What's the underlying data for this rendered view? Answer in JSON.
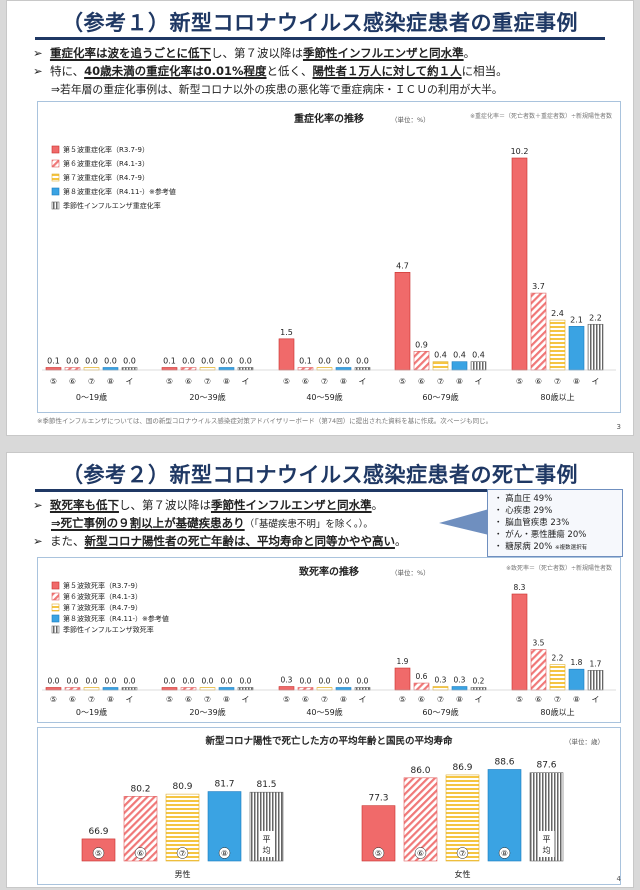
{
  "slide1": {
    "title": "（参考１）新型コロナウイルス感染症患者の重症事例",
    "bullets": [
      {
        "pre": "",
        "bold": "重症化率は波を追うごとに低下",
        "mid": "し、第７波以降は",
        "bold2": "季節性インフルエンザと同水準",
        "post": "。",
        "marker": "➢"
      },
      {
        "pre": "特に、",
        "bold": "40歳未満の重症化率は0.01%程度",
        "mid": "と低く、",
        "bold2": "陽性者１万人に対して約１人",
        "post": "に相当。",
        "marker": "➢"
      },
      {
        "pre": "⇒若年層の重症化事例は、新型コロナ以外の疾患の悪化等で重症病床・ＩＣＵの利用が大半。",
        "bold": "",
        "mid": "",
        "bold2": "",
        "post": "",
        "marker": ""
      }
    ],
    "footnote": "※季節性インフルエンザについては、国の新型コロナウイルス感染症対策アドバイザリーボード（第74回）に提出された資料を基に作成。次ページも同じ。",
    "page": "3"
  },
  "slide2": {
    "title": "（参考２）新型コロナウイルス感染症患者の死亡事例",
    "bullets": [
      {
        "pre": "",
        "bold": "致死率も低下",
        "mid": "し、第７波以降は",
        "bold2": "季節性インフルエンザと同水準",
        "post": "。",
        "marker": "➢"
      },
      {
        "pre": "",
        "bold": "⇒死亡事例の９割以上が基礎疾患あり",
        "mid": "（「基礎疾患不明」を除く。）。",
        "bold2": "",
        "post": "",
        "marker": ""
      },
      {
        "pre": "また、",
        "bold": "新型コロナ陽性者の死亡年齢は、平均寿命と同等かやや高い",
        "mid": "。",
        "bold2": "",
        "post": "",
        "marker": "➢"
      }
    ],
    "sidebox": [
      "・ 高血圧 49%",
      "・ 心疾患 29%",
      "・ 脳血管疾患 23%",
      "・ がん・悪性腫瘍 20%",
      "・ 糖尿病 20%"
    ],
    "sidebox_note": "※複数選択有",
    "page": "4"
  },
  "chart_data": [
    {
      "type": "bar",
      "title": "重症化率の推移",
      "unit": "（単位：%）",
      "formula": "※重症化率＝（死亡者数＋重症者数）÷新規陽性者数",
      "categories": [
        "0〜19歳",
        "20〜39歳",
        "40〜59歳",
        "60〜79歳",
        "80歳以上"
      ],
      "series": [
        {
          "name": "第５波重症化率（R3.7-9）",
          "tick": "⑤",
          "values": [
            0.1,
            0.1,
            1.5,
            4.7,
            10.2
          ]
        },
        {
          "name": "第６波重症化率（R4.1-3）",
          "tick": "⑥",
          "values": [
            0.0,
            0.0,
            0.1,
            0.9,
            3.7
          ]
        },
        {
          "name": "第７波重症化率（R4.7-9）",
          "tick": "⑦",
          "values": [
            0.0,
            0.0,
            0.0,
            0.4,
            2.4
          ]
        },
        {
          "name": "第８波重症化率（R4.11-）※参考値",
          "tick": "⑧",
          "values": [
            0.0,
            0.0,
            0.0,
            0.4,
            2.1
          ]
        },
        {
          "name": "季節性インフルエンザ重症化率",
          "tick": "イ",
          "values": [
            0.0,
            0.0,
            0.0,
            0.4,
            2.2
          ]
        }
      ],
      "labels": [
        [
          "0.1",
          "0.0",
          "0.0",
          "0.0",
          "0.0"
        ],
        [
          "0.1",
          "0.0",
          "0.0",
          "0.0",
          "0.0"
        ],
        [
          "1.5",
          "0.1",
          "0.0",
          "0.0",
          "0.0"
        ],
        [
          "4.7",
          "0.9",
          "0.4",
          "0.4",
          "0.4"
        ],
        [
          "10.2",
          "3.7",
          "2.4",
          "2.1",
          "2.2"
        ]
      ],
      "ylim": [
        0,
        10.2
      ]
    },
    {
      "type": "bar",
      "title": "致死率の推移",
      "unit": "（単位：%）",
      "formula": "※致死率＝（死亡者数）÷新規陽性者数",
      "categories": [
        "0〜19歳",
        "20〜39歳",
        "40〜59歳",
        "60〜79歳",
        "80歳以上"
      ],
      "series": [
        {
          "name": "第５波致死率（R3.7-9）",
          "tick": "⑤",
          "values": [
            0.0,
            0.0,
            0.3,
            1.9,
            8.3
          ]
        },
        {
          "name": "第６波致死率（R4.1-3）",
          "tick": "⑥",
          "values": [
            0.0,
            0.0,
            0.0,
            0.6,
            3.5
          ]
        },
        {
          "name": "第７波致死率（R4.7-9）",
          "tick": "⑦",
          "values": [
            0.0,
            0.0,
            0.0,
            0.3,
            2.2
          ]
        },
        {
          "name": "第８波致死率（R4.11-）※参考値",
          "tick": "⑧",
          "values": [
            0.0,
            0.0,
            0.0,
            0.3,
            1.8
          ]
        },
        {
          "name": "季節性インフルエンザ致死率",
          "tick": "イ",
          "values": [
            0.0,
            0.0,
            0.0,
            0.2,
            1.7
          ]
        }
      ],
      "labels": [
        [
          "0.0",
          "0.0",
          "0.0",
          "0.0",
          "0.0"
        ],
        [
          "0.0",
          "0.0",
          "0.0",
          "0.0",
          "0.0"
        ],
        [
          "0.3",
          "0.0",
          "0.0",
          "0.0",
          "0.0"
        ],
        [
          "1.9",
          "0.6",
          "0.3",
          "0.3",
          "0.2"
        ],
        [
          "8.3",
          "3.5",
          "2.2",
          "1.8",
          "1.7"
        ]
      ],
      "ylim": [
        0,
        8.3
      ]
    },
    {
      "type": "bar",
      "title": "新型コロナ陽性で死亡した方の平均年齢と国民の平均寿命",
      "unit": "（単位：歳）",
      "categories": [
        "男性",
        "女性"
      ],
      "series": [
        {
          "name": "⑤",
          "values": [
            66.9,
            77.3
          ]
        },
        {
          "name": "⑥",
          "values": [
            80.2,
            86.0
          ]
        },
        {
          "name": "⑦",
          "values": [
            80.9,
            86.9
          ]
        },
        {
          "name": "⑧",
          "values": [
            81.7,
            88.6
          ]
        },
        {
          "name": "平均",
          "values": [
            81.5,
            87.6
          ]
        }
      ],
      "labels": [
        [
          "66.9",
          "80.2",
          "80.9",
          "81.7",
          "81.5"
        ],
        [
          "77.3",
          "86.0",
          "86.9",
          "88.6",
          "87.6"
        ]
      ],
      "ylim": [
        60,
        90
      ]
    }
  ]
}
